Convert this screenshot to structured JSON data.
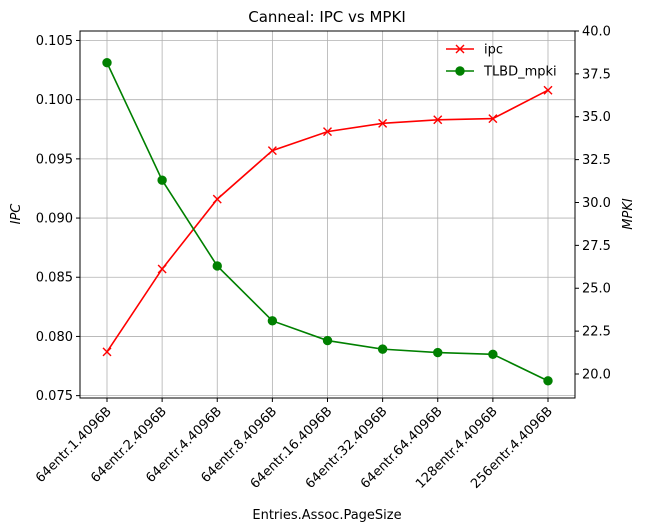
{
  "chart_data": {
    "type": "line",
    "title": "Canneal: IPC vs MPKI",
    "xlabel": "Entries.Assoc.PageSize",
    "ylabel_left": "IPC",
    "ylabel_right": "MPKI",
    "categories": [
      "64entr.1.4096B",
      "64entr.2.4096B",
      "64entr.4.4096B",
      "64entr.8.4096B",
      "64entr.16.4096B",
      "64entr.32.4096B",
      "64entr.64.4096B",
      "128entr.4.4096B",
      "256entr.4.4096B"
    ],
    "grid": true,
    "legend_position": "top-right",
    "ylim_left": [
      0.0748,
      0.1058
    ],
    "ylim_right": [
      18.6,
      40.0
    ],
    "yticks_left": [
      "0.075",
      "0.080",
      "0.085",
      "0.090",
      "0.095",
      "0.100",
      "0.105"
    ],
    "yticks_right": [
      "20.0",
      "22.5",
      "25.0",
      "27.5",
      "30.0",
      "32.5",
      "35.0",
      "37.5",
      "40.0"
    ],
    "series": [
      {
        "name": "ipc",
        "axis": "left",
        "color": "#ff0000",
        "marker": "x",
        "values": [
          0.0787,
          0.0857,
          0.0916,
          0.0957,
          0.0973,
          0.098,
          0.0983,
          0.0984,
          0.1008
        ]
      },
      {
        "name": "TLBD_mpki",
        "axis": "right",
        "color": "#008000",
        "marker": "o",
        "values": [
          38.15,
          31.3,
          26.3,
          23.1,
          21.95,
          21.45,
          21.25,
          21.15,
          19.6
        ]
      }
    ]
  }
}
